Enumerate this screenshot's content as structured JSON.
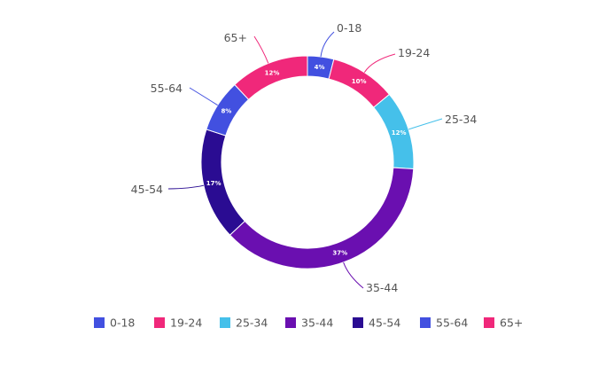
{
  "chart_data": {
    "type": "pie",
    "variant": "donut",
    "title": "",
    "categories": [
      "0-18",
      "19-24",
      "25-34",
      "35-44",
      "45-54",
      "55-64",
      "65+"
    ],
    "values": [
      4,
      10,
      12,
      37,
      17,
      8,
      12
    ],
    "value_labels": [
      "4%",
      "10%",
      "12%",
      "37%",
      "17%",
      "8%",
      "12%"
    ],
    "colors": [
      "#4250e0",
      "#f0287a",
      "#45c0ea",
      "#6a0fb0",
      "#2a0c92",
      "#4250e0",
      "#f0287a"
    ],
    "legend": {
      "placement": "bottom",
      "items": [
        {
          "label": "0-18",
          "color": "#4250e0"
        },
        {
          "label": "19-24",
          "color": "#f0287a"
        },
        {
          "label": "25-34",
          "color": "#45c0ea"
        },
        {
          "label": "35-44",
          "color": "#6a0fb0"
        },
        {
          "label": "45-54",
          "color": "#2a0c92"
        },
        {
          "label": "55-64",
          "color": "#4250e0"
        },
        {
          "label": "65+",
          "color": "#f0287a"
        }
      ]
    }
  }
}
